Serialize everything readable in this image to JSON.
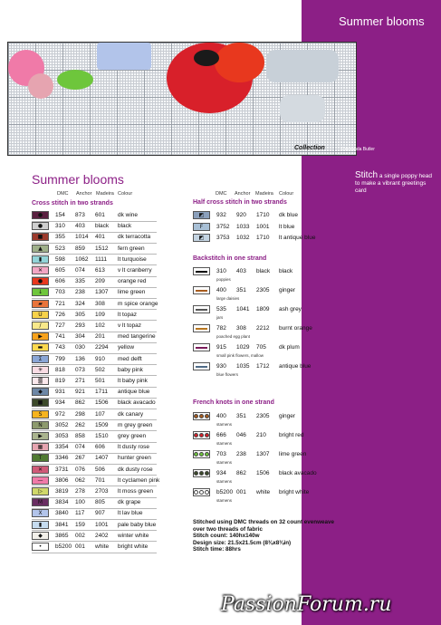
{
  "sidebar": {
    "title": "Summer blooms",
    "caption_big": "Stitch",
    "caption_rest": " a single poppy head to make a vibrant greetings card",
    "color": "#8c1f86"
  },
  "chart_credit": "© Amanda Butler",
  "logo": "Collection",
  "heading": "Summer blooms",
  "columns": {
    "dmc": "DMC",
    "anchor": "Anchor",
    "madeira": "Madeira",
    "colour": "Colour"
  },
  "cross": {
    "title": "Cross stitch in two strands",
    "rows": [
      {
        "sym": "●",
        "dmc": "154",
        "anchor": "873",
        "madeira": "601",
        "colour": "dk wine",
        "bg": "#5a2040",
        "fg": "#000"
      },
      {
        "sym": "●",
        "dmc": "310",
        "anchor": "403",
        "madeira": "black",
        "colour": "black",
        "bg": "#cfcfcf",
        "fg": "#000"
      },
      {
        "sym": "■",
        "dmc": "355",
        "anchor": "1014",
        "madeira": "401",
        "colour": "dk terracotta",
        "bg": "#9c3a2c",
        "fg": "#000"
      },
      {
        "sym": "▲",
        "dmc": "523",
        "anchor": "859",
        "madeira": "1512",
        "colour": "fern green",
        "bg": "#9fb08a",
        "fg": "#000"
      },
      {
        "sym": "▮",
        "dmc": "598",
        "anchor": "1062",
        "madeira": "1111",
        "colour": "lt turquoise",
        "bg": "#92d4d8",
        "fg": "#000"
      },
      {
        "sym": "✕",
        "dmc": "605",
        "anchor": "074",
        "madeira": "613",
        "colour": "v lt cranberry",
        "bg": "#f3a6c4",
        "fg": "#000"
      },
      {
        "sym": "●",
        "dmc": "606",
        "anchor": "335",
        "madeira": "209",
        "colour": "orange red",
        "bg": "#e8381e",
        "fg": "#000"
      },
      {
        "sym": "↓",
        "dmc": "703",
        "anchor": "238",
        "madeira": "1307",
        "colour": "lime green",
        "bg": "#6ec63c",
        "fg": "#000"
      },
      {
        "sym": "▰",
        "dmc": "721",
        "anchor": "324",
        "madeira": "308",
        "colour": "m spice orange",
        "bg": "#e8743a",
        "fg": "#000"
      },
      {
        "sym": "U",
        "dmc": "726",
        "anchor": "305",
        "madeira": "109",
        "colour": "lt topaz",
        "bg": "#f7d24a",
        "fg": "#000"
      },
      {
        "sym": "/",
        "dmc": "727",
        "anchor": "293",
        "madeira": "102",
        "colour": "v lt topaz",
        "bg": "#f8e88a",
        "fg": "#000"
      },
      {
        "sym": "▶",
        "dmc": "741",
        "anchor": "304",
        "madeira": "201",
        "colour": "med tangerine",
        "bg": "#f7a21c",
        "fg": "#000"
      },
      {
        "sym": "▬",
        "dmc": "743",
        "anchor": "030",
        "madeira": "2294",
        "colour": "yellow",
        "bg": "#fbd94e",
        "fg": "#000"
      },
      {
        "sym": "Σ",
        "dmc": "799",
        "anchor": "136",
        "madeira": "910",
        "colour": "med delft",
        "bg": "#8aa6d6",
        "fg": "#000"
      },
      {
        "sym": "✳",
        "dmc": "818",
        "anchor": "073",
        "madeira": "502",
        "colour": "baby pink",
        "bg": "#f9dce4",
        "fg": "#000"
      },
      {
        "sym": "▒",
        "dmc": "819",
        "anchor": "271",
        "madeira": "501",
        "colour": "lt baby pink",
        "bg": "#fbe8ec",
        "fg": "#000"
      },
      {
        "sym": "◆",
        "dmc": "931",
        "anchor": "921",
        "madeira": "1711",
        "colour": "antique blue",
        "bg": "#6d87a6",
        "fg": "#000"
      },
      {
        "sym": "■",
        "dmc": "934",
        "anchor": "862",
        "madeira": "1506",
        "colour": "black avacado",
        "bg": "#3c4a2a",
        "fg": "#000"
      },
      {
        "sym": "S",
        "dmc": "972",
        "anchor": "298",
        "madeira": "107",
        "colour": "dk canary",
        "bg": "#f6b41e",
        "fg": "#000"
      },
      {
        "sym": "N",
        "dmc": "3052",
        "anchor": "262",
        "madeira": "1509",
        "colour": "m grey green",
        "bg": "#8d9a6e",
        "fg": "#000"
      },
      {
        "sym": "▶",
        "dmc": "3053",
        "anchor": "858",
        "madeira": "1510",
        "colour": "grey green",
        "bg": "#aab48e",
        "fg": "#000"
      },
      {
        "sym": "▦",
        "dmc": "3354",
        "anchor": "074",
        "madeira": "606",
        "colour": "lt dusty rose",
        "bg": "#e6a4b0",
        "fg": "#000"
      },
      {
        "sym": "T",
        "dmc": "3346",
        "anchor": "267",
        "madeira": "1407",
        "colour": "hunter green",
        "bg": "#4f7a32",
        "fg": "#000"
      },
      {
        "sym": "✕",
        "dmc": "3731",
        "anchor": "076",
        "madeira": "506",
        "colour": "dk dusty rose",
        "bg": "#d05a78",
        "fg": "#000"
      },
      {
        "sym": "—",
        "dmc": "3806",
        "anchor": "062",
        "madeira": "701",
        "colour": "lt cyclamen pink",
        "bg": "#f07aa8",
        "fg": "#000"
      },
      {
        "sym": "▷",
        "dmc": "3819",
        "anchor": "278",
        "madeira": "2703",
        "colour": "lt moss green",
        "bg": "#d0d86a",
        "fg": "#000"
      },
      {
        "sym": "M",
        "dmc": "3834",
        "anchor": "100",
        "madeira": "805",
        "colour": "dk grape",
        "bg": "#6a2e62",
        "fg": "#000"
      },
      {
        "sym": "X",
        "dmc": "3840",
        "anchor": "117",
        "madeira": "907",
        "colour": "lt lav blue",
        "bg": "#b2c4ea",
        "fg": "#000"
      },
      {
        "sym": "▮",
        "dmc": "3841",
        "anchor": "159",
        "madeira": "1001",
        "colour": "pale baby blue",
        "bg": "#c6dcf0",
        "fg": "#000"
      },
      {
        "sym": "◆",
        "dmc": "3865",
        "anchor": "002",
        "madeira": "2402",
        "colour": "winter white",
        "bg": "#f2f0ea",
        "fg": "#000"
      },
      {
        "sym": "•",
        "dmc": "b5200",
        "anchor": "001",
        "madeira": "white",
        "colour": "bright white",
        "bg": "#ffffff",
        "fg": "#000"
      }
    ]
  },
  "half": {
    "title": "Half cross stitch in two strands",
    "rows": [
      {
        "sym": "◩",
        "dmc": "932",
        "anchor": "920",
        "madeira": "1710",
        "colour": "dk blue",
        "bg": "#8ba0bc"
      },
      {
        "sym": "F",
        "dmc": "3752",
        "anchor": "1033",
        "madeira": "1001",
        "colour": "lt blue",
        "bg": "#a8c0d6"
      },
      {
        "sym": "◩",
        "dmc": "3753",
        "anchor": "1032",
        "madeira": "1710",
        "colour": "lt antique blue",
        "bg": "#c4d4e2"
      }
    ]
  },
  "back": {
    "title": "Backstitch in one strand",
    "rows": [
      {
        "dmc": "310",
        "anchor": "403",
        "madeira": "black",
        "colour": "black",
        "sub": "poppies",
        "color": "#000000"
      },
      {
        "dmc": "400",
        "anchor": "351",
        "madeira": "2305",
        "colour": "ginger",
        "sub": "large daisies",
        "color": "#a85c1e"
      },
      {
        "dmc": "535",
        "anchor": "1041",
        "madeira": "1809",
        "colour": "ash grey",
        "sub": "jars",
        "color": "#555555"
      },
      {
        "dmc": "782",
        "anchor": "308",
        "madeira": "2212",
        "colour": "burnt orange",
        "sub": "poached egg plant",
        "color": "#b8761e"
      },
      {
        "dmc": "915",
        "anchor": "1029",
        "madeira": "705",
        "colour": "dk plum",
        "sub": "small pink flowers, mallow",
        "color": "#7a1a5a"
      },
      {
        "dmc": "930",
        "anchor": "1035",
        "madeira": "1712",
        "colour": "antique blue",
        "sub": "blue flowers",
        "color": "#4e6a86"
      }
    ]
  },
  "knots": {
    "title": "French knots in one strand",
    "rows": [
      {
        "dmc": "400",
        "anchor": "351",
        "madeira": "2305",
        "colour": "ginger",
        "sub": "stamens",
        "color": "#a85c1e"
      },
      {
        "dmc": "666",
        "anchor": "046",
        "madeira": "210",
        "colour": "bright red",
        "sub": "stamens",
        "color": "#d8202a"
      },
      {
        "dmc": "703",
        "anchor": "238",
        "madeira": "1307",
        "colour": "lime green",
        "sub": "stamens",
        "color": "#6ec63c"
      },
      {
        "dmc": "934",
        "anchor": "862",
        "madeira": "1506",
        "colour": "black avacado",
        "sub": "stamens",
        "color": "#3c4a2a"
      },
      {
        "dmc": "b5200",
        "anchor": "001",
        "madeira": "white",
        "colour": "bright white",
        "sub": "stamens",
        "color": "#ffffff"
      }
    ]
  },
  "notes": [
    "Stitched using DMC threads on 32 count evenweave",
    "over two threads of fabric",
    "Stitch count: 140hx140w",
    "Design size: 21.5x21.5cm (8⅜x8⅜in)",
    "Stitch time: 88hrs"
  ],
  "watermark": "PassionForum.ru"
}
